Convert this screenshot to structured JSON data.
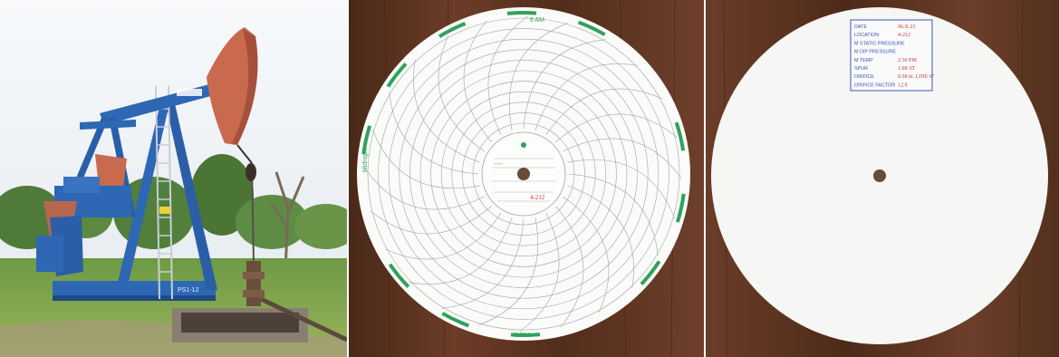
{
  "photo_pumpjack": {
    "well_plate": "PS1-12"
  },
  "chart_front": {
    "rim_top": "6 AM",
    "rim_left": "Midnight",
    "rim_bottom": "6 PM",
    "hub_value": "4-212"
  },
  "chart_back": {
    "rows": [
      {
        "label": "DATE",
        "value": "06.X.23"
      },
      {
        "label": "LOCATION",
        "value": "4-212"
      },
      {
        "label": "M STATIC PRESSURE",
        "value": ""
      },
      {
        "label": "M DIP PRESSURE",
        "value": ""
      },
      {
        "label": "M TEMP",
        "value": "2:30 PM"
      },
      {
        "label": "SPUR",
        "value": "1.08 AT"
      },
      {
        "label": "ORIFICE",
        "value": "0.38 in. LINE 6\""
      },
      {
        "label": "ORIFICE FACTOR",
        "value": "12.9"
      }
    ]
  },
  "colors": {
    "wood": "#5a3221",
    "pump_blue": "#2e67b4",
    "head_salmon": "#c9694e",
    "chart_green": "#2ea35a",
    "stamp_blue": "#3a55b8",
    "ink_red": "#c23a3a"
  }
}
